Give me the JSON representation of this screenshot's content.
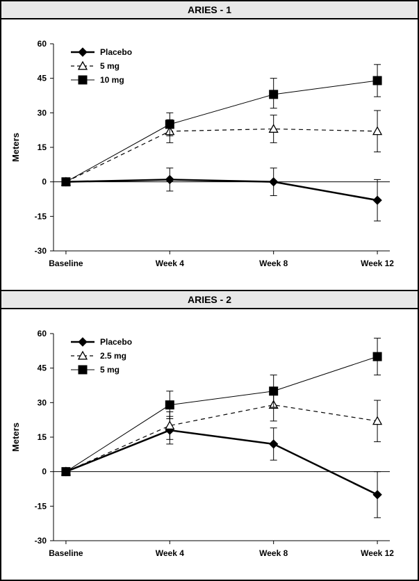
{
  "panels": [
    {
      "title": "ARIES - 1",
      "ylabel": "Meters",
      "ylim": [
        -30,
        60
      ],
      "ytick_step": 15,
      "x_categories": [
        "Baseline",
        "Week 4",
        "Week 8",
        "Week 12"
      ],
      "series": [
        {
          "name": "Placebo",
          "marker": "diamond-filled",
          "line_style": "solid",
          "line_width": 2.5,
          "color": "#000000",
          "values": [
            0,
            1,
            0,
            -8
          ],
          "err_low": [
            0,
            5,
            6,
            9
          ],
          "err_high": [
            0,
            5,
            6,
            9
          ]
        },
        {
          "name": "5 mg",
          "marker": "triangle-open",
          "line_style": "dashed",
          "line_width": 1.2,
          "color": "#000000",
          "values": [
            0,
            22,
            23,
            22
          ],
          "err_low": [
            0,
            5,
            6,
            9
          ],
          "err_high": [
            0,
            5,
            6,
            9
          ]
        },
        {
          "name": "10 mg",
          "marker": "square-filled",
          "line_style": "solid",
          "line_width": 1.0,
          "color": "#000000",
          "values": [
            0,
            25,
            38,
            44
          ],
          "err_low": [
            0,
            5,
            6,
            7
          ],
          "err_high": [
            0,
            5,
            7,
            7
          ]
        }
      ]
    },
    {
      "title": "ARIES - 2",
      "ylabel": "Meters",
      "ylim": [
        -30,
        60
      ],
      "ytick_step": 15,
      "x_categories": [
        "Baseline",
        "Week 4",
        "Week 8",
        "Week 12"
      ],
      "series": [
        {
          "name": "Placebo",
          "marker": "diamond-filled",
          "line_style": "solid",
          "line_width": 2.5,
          "color": "#000000",
          "values": [
            0,
            18,
            12,
            -10
          ],
          "err_low": [
            0,
            6,
            7,
            10
          ],
          "err_high": [
            0,
            6,
            7,
            10
          ]
        },
        {
          "name": "2.5 mg",
          "marker": "triangle-open",
          "line_style": "dashed",
          "line_width": 1.2,
          "color": "#000000",
          "values": [
            0,
            20,
            29,
            22
          ],
          "err_low": [
            0,
            6,
            7,
            9
          ],
          "err_high": [
            0,
            6,
            7,
            9
          ]
        },
        {
          "name": "5 mg",
          "marker": "square-filled",
          "line_style": "solid",
          "line_width": 1.0,
          "color": "#000000",
          "values": [
            0,
            29,
            35,
            50
          ],
          "err_low": [
            0,
            6,
            7,
            8
          ],
          "err_high": [
            0,
            6,
            7,
            8
          ]
        }
      ]
    }
  ],
  "chart_style": {
    "background": "#ffffff",
    "title_bg": "#e8e8e8",
    "axis_color": "#000000",
    "tick_font_size": 12,
    "label_font_size": 13,
    "legend_font_size": 12,
    "marker_size": 6,
    "cap_width": 5
  }
}
